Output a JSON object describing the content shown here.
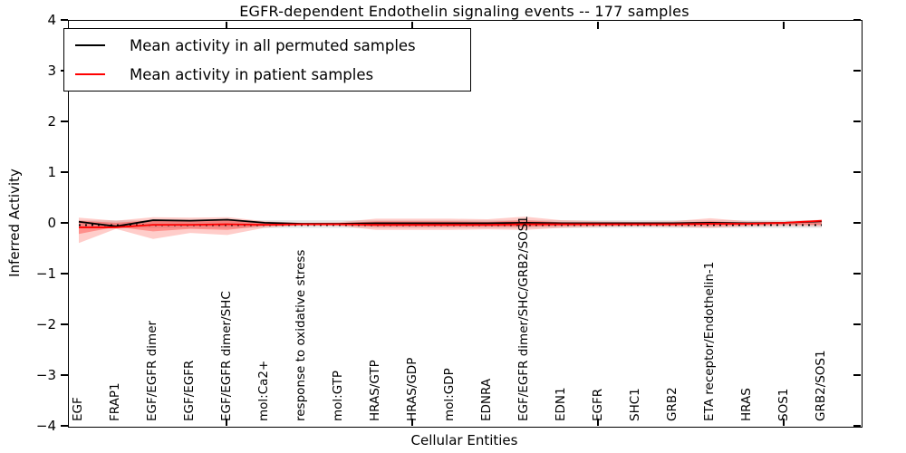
{
  "title": "EGFR-dependent Endothelin signaling events -- 177 samples",
  "axes": {
    "y_label": "Inferred Activity",
    "x_label": "Cellular Entities",
    "y_ticks": [
      "4",
      "3",
      "2",
      "1",
      "0",
      "−1",
      "−2",
      "−3",
      "−4"
    ]
  },
  "chart_data": {
    "type": "line",
    "title": "EGFR-dependent Endothelin signaling events -- 177 samples",
    "xlabel": "Cellular Entities",
    "ylabel": "Inferred Activity",
    "ylim": [
      -4,
      4
    ],
    "grid": false,
    "legend_position": "upper left",
    "x_tick_indices": [
      4,
      9,
      14,
      19
    ],
    "categories": [
      "EGF",
      "FRAP1",
      "EGF/EGFR dimer",
      "EGF/EGFR",
      "EGF/EGFR dimer/SHC",
      "mol:Ca2+",
      "response to oxidative stress",
      "mol:GTP",
      "HRAS/GTP",
      "HRAS/GDP",
      "mol:GDP",
      "EDNRA",
      "EGF/EGFR dimer/SHC/GRB2/SOS1",
      "EDN1",
      "EGFR",
      "SHC1",
      "GRB2",
      "ETA receptor/Endothelin-1",
      "HRAS",
      "SOS1",
      "GRB2/SOS1"
    ],
    "series": [
      {
        "name": "Mean activity in all permuted samples",
        "color": "#000000",
        "values": [
          0.04,
          -0.05,
          0.07,
          0.06,
          0.08,
          0.02,
          0.0,
          0.0,
          0.01,
          0.01,
          0.01,
          0.01,
          0.02,
          0.01,
          0.01,
          0.01,
          0.01,
          0.02,
          0.01,
          0.02,
          0.05
        ]
      },
      {
        "name": "Mean activity in patient samples",
        "color": "#ff0000",
        "values": [
          -0.07,
          -0.07,
          -0.02,
          -0.02,
          -0.01,
          -0.02,
          -0.01,
          -0.01,
          -0.02,
          -0.02,
          -0.02,
          -0.02,
          -0.01,
          -0.01,
          -0.01,
          -0.01,
          -0.01,
          0.0,
          0.0,
          0.02,
          0.06
        ]
      }
    ],
    "bands": [
      {
        "name": "permuted-sample-range",
        "color": "rgba(110,110,110,0.18)",
        "upper": [
          0.07,
          0.07,
          0.07,
          0.07,
          0.07,
          0.07,
          0.07,
          0.07,
          0.07,
          0.07,
          0.07,
          0.07,
          0.07,
          0.07,
          0.07,
          0.07,
          0.07,
          0.07,
          0.07,
          0.07,
          0.07
        ],
        "lower": [
          -0.08,
          -0.08,
          -0.08,
          -0.08,
          -0.08,
          -0.08,
          -0.08,
          -0.08,
          -0.08,
          -0.08,
          -0.08,
          -0.08,
          -0.08,
          -0.08,
          -0.08,
          -0.08,
          -0.08,
          -0.08,
          -0.08,
          -0.08,
          -0.08
        ]
      },
      {
        "name": "patient-sample-outer-band",
        "color": "rgba(255,55,45,0.25)",
        "upper": [
          0.12,
          0.06,
          0.13,
          0.12,
          0.13,
          0.05,
          0.02,
          0.03,
          0.1,
          0.1,
          0.1,
          0.09,
          0.14,
          0.07,
          0.05,
          0.04,
          0.05,
          0.11,
          0.05,
          0.04,
          0.08
        ],
        "lower": [
          -0.38,
          -0.1,
          -0.3,
          -0.18,
          -0.22,
          -0.08,
          -0.03,
          -0.04,
          -0.12,
          -0.12,
          -0.12,
          -0.11,
          -0.12,
          -0.08,
          -0.06,
          -0.05,
          -0.06,
          -0.08,
          -0.05,
          -0.04,
          -0.05
        ]
      },
      {
        "name": "patient-sample-inner-band",
        "color": "rgba(255,45,40,0.38)",
        "upper": [
          0.06,
          0.02,
          0.07,
          0.07,
          0.08,
          0.02,
          0.01,
          0.01,
          0.05,
          0.05,
          0.05,
          0.04,
          0.07,
          0.03,
          0.02,
          0.02,
          0.02,
          0.05,
          0.02,
          0.02,
          0.06
        ],
        "lower": [
          -0.2,
          -0.06,
          -0.15,
          -0.1,
          -0.12,
          -0.04,
          -0.02,
          -0.02,
          -0.06,
          -0.06,
          -0.06,
          -0.06,
          -0.06,
          -0.04,
          -0.03,
          -0.03,
          -0.03,
          -0.04,
          -0.03,
          -0.02,
          -0.02
        ]
      }
    ],
    "dotted_reference_line": {
      "value": -0.025,
      "color": "#000000",
      "style": "dotted"
    }
  },
  "legend": {
    "items": [
      {
        "label": "Mean activity in all permuted samples",
        "color": "#000000"
      },
      {
        "label": "Mean activity in patient samples",
        "color": "#ff0000"
      }
    ]
  }
}
